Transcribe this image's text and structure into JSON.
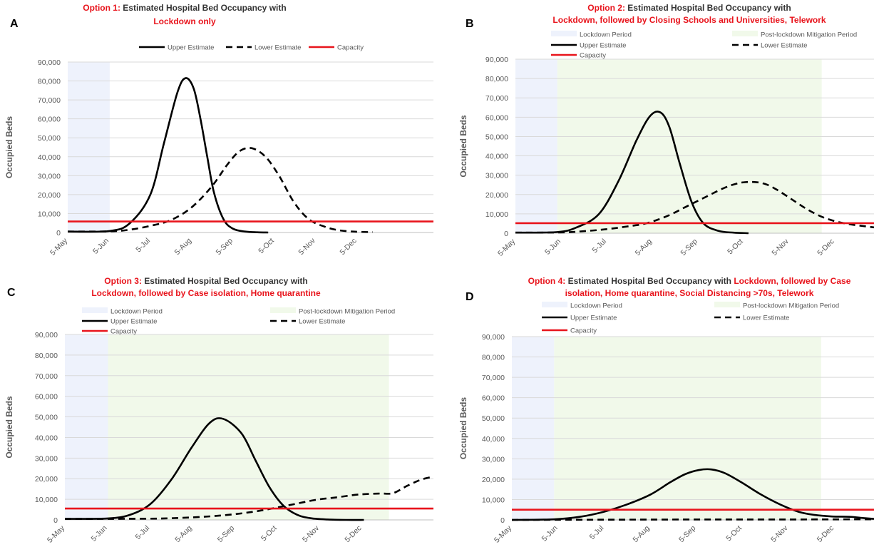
{
  "colors": {
    "upper": "#000000",
    "lower": "#000000",
    "capacity": "#e8141c",
    "lockdown_shade": "#eef2fc",
    "mitigation_shade": "#f1f9ea",
    "title_red": "#e8141c",
    "grid": "#d9d9d9",
    "axis_text": "#595959"
  },
  "panels": [
    {
      "label": "A",
      "title_lines": [
        [
          {
            "text": "Option 1:",
            "red": true
          },
          {
            "text": " Estimated Hospital Bed Occupancy with",
            "red": false
          }
        ],
        [
          {
            "text": "Lockdown only",
            "red": true
          }
        ]
      ],
      "legend": {
        "lockdown": null,
        "mitigation": null,
        "upper": "Upper Estimate",
        "lower": "Lower Estimate",
        "capacity": "Capacity"
      },
      "chart_data": {
        "type": "line",
        "ylabel": "Occupied Beds",
        "ylim": [
          0,
          90000
        ],
        "yticks": [
          "0",
          "10,000",
          "20,000",
          "30,000",
          "40,000",
          "50,000",
          "60,000",
          "70,000",
          "80,000",
          "90,000"
        ],
        "xticks": [
          "5-May",
          "5-Jun",
          "5-Jul",
          "5-Aug",
          "5-Sep",
          "5-Oct",
          "5-Nov",
          "5-Dec"
        ],
        "x_days_range": [
          0,
          270
        ],
        "grid": true,
        "lockdown_period": [
          0,
          31
        ],
        "mitigation_period": null,
        "capacity": 5800,
        "series": [
          {
            "name": "Upper Estimate",
            "style": "solid",
            "x": [
              0,
              31,
              46,
              61,
              71,
              81,
              87,
              93,
              98,
              103,
              108,
              115,
              122,
              131,
              140,
              148
            ],
            "y": [
              500,
              800,
              5000,
              20000,
              47000,
              74000,
              81500,
              76000,
              60000,
              40000,
              21000,
              7000,
              2000,
              500,
              100,
              0
            ]
          },
          {
            "name": "Lower Estimate",
            "style": "dashed",
            "x": [
              0,
              31,
              46,
              61,
              76,
              91,
              106,
              118,
              127,
              136,
              146,
              156,
              167,
              178,
              190,
              200,
              213,
              225
            ],
            "y": [
              500,
              600,
              1500,
              3500,
              6500,
              13000,
              24000,
              36000,
              43000,
              44500,
              40000,
              30000,
              16000,
              7000,
              3000,
              1200,
              400,
              200
            ]
          }
        ]
      }
    },
    {
      "label": "B",
      "title_lines": [
        [
          {
            "text": "Option 2:",
            "red": true
          },
          {
            "text": " Estimated Hospital Bed Occupancy with",
            "red": false
          }
        ],
        [
          {
            "text": "Lockdown, followed by Closing Schools and Universities, Telework",
            "red": true
          }
        ]
      ],
      "legend": {
        "lockdown": "Lockdown Period",
        "mitigation": "Post-lockdown Mitigation Period",
        "upper": "Upper Estimate",
        "lower": "Lower Estimate",
        "capacity": "Capacity"
      },
      "chart_data": {
        "type": "line",
        "ylabel": "Occupied Beds",
        "ylim": [
          0,
          90000
        ],
        "yticks": [
          "0",
          "10,000",
          "20,000",
          "30,000",
          "40,000",
          "50,000",
          "60,000",
          "70,000",
          "80,000",
          "90,000"
        ],
        "xticks": [
          "5-May",
          "5-Jun",
          "5-Jul",
          "5-Aug",
          "5-Sep",
          "5-Oct",
          "5-Nov",
          "5-Dec"
        ],
        "x_days_range": [
          0,
          240
        ],
        "grid": true,
        "lockdown_period": [
          0,
          28
        ],
        "mitigation_period": [
          28,
          205
        ],
        "capacity": 5200,
        "series": [
          {
            "name": "Upper Estimate",
            "style": "solid",
            "x": [
              0,
              28,
              41,
              56,
              69,
              81,
              90,
              97,
              103,
              110,
              118,
              126,
              136,
              146,
              156
            ],
            "y": [
              300,
              600,
              3000,
              10000,
              27000,
              48000,
              60500,
              62500,
              55000,
              36000,
              16000,
              5000,
              1200,
              300,
              0
            ]
          },
          {
            "name": "Lower Estimate",
            "style": "dashed",
            "x": [
              0,
              30,
              45,
              60,
              75,
              88,
              102,
              115,
              128,
              140,
              150,
              159,
              167,
              175,
              185,
              195,
              205,
              215,
              225,
              235,
              240
            ],
            "y": [
              300,
              400,
              1000,
              2000,
              3500,
              5200,
              9000,
              14000,
              19000,
              23500,
              26000,
              26500,
              25500,
              22500,
              17500,
              12500,
              8500,
              6000,
              4500,
              3500,
              3000
            ]
          }
        ]
      }
    },
    {
      "label": "C",
      "title_lines": [
        [
          {
            "text": "Option 3:",
            "red": true
          },
          {
            "text": " Estimated Hospital Bed Occupancy with",
            "red": false
          }
        ],
        [
          {
            "text": "Lockdown, followed by Case isolation, Home quarantine",
            "red": true
          }
        ]
      ],
      "legend": {
        "lockdown": "Lockdown Period",
        "mitigation": "Post-lockdown Mitigation Period",
        "upper": "Upper Estimate",
        "lower": "Lower Estimate",
        "capacity": "Capacity"
      },
      "chart_data": {
        "type": "line",
        "ylabel": "Occupied Beds",
        "ylim": [
          0,
          90000
        ],
        "yticks": [
          "0",
          "10,000",
          "20,000",
          "30,000",
          "40,000",
          "50,000",
          "60,000",
          "70,000",
          "80,000",
          "90,000"
        ],
        "xticks": [
          "5-May",
          "5-Jun",
          "5-Jul",
          "5-Aug",
          "5-Sep",
          "5-Oct",
          "5-Nov",
          "5-Dec"
        ],
        "x_days_range": [
          0,
          265
        ],
        "grid": true,
        "lockdown_period": [
          0,
          31
        ],
        "mitigation_period": [
          31,
          233
        ],
        "capacity": 5500,
        "series": [
          {
            "name": "Upper Estimate",
            "style": "solid",
            "x": [
              0,
              31,
              47,
              62,
              77,
              91,
              104,
              114,
              127,
              137,
              147,
              157,
              167,
              177,
              189,
              202,
              215
            ],
            "y": [
              500,
              700,
              2500,
              8000,
              20000,
              35000,
              47000,
              49000,
              42000,
              29000,
              16000,
              7000,
              2500,
              800,
              200,
              0,
              0
            ]
          },
          {
            "name": "Lower Estimate",
            "style": "dashed",
            "x": [
              0,
              31,
              61,
              76,
              91,
              106,
              121,
              136,
              151,
              166,
              181,
              196,
              211,
              226,
              236,
              246,
              256,
              265
            ],
            "y": [
              500,
              500,
              600,
              800,
              1200,
              1800,
              2700,
              4000,
              5800,
              7800,
              9800,
              11000,
              12300,
              12800,
              13000,
              16500,
              19500,
              21000
            ]
          }
        ]
      }
    },
    {
      "label": "D",
      "title_lines": [
        [
          {
            "text": "Option 4:",
            "red": true
          },
          {
            "text": " Estimated Hospital Bed Occupancy with ",
            "red": false
          },
          {
            "text": "Lockdown, followed by Case",
            "red": true
          }
        ],
        [
          {
            "text": "isolation, Home quarantine, Social Distancing >70s, Telework",
            "red": true
          }
        ]
      ],
      "legend": {
        "lockdown": "Lockdown Period",
        "mitigation": "Post-lockdown Mitigation Period",
        "upper": "Upper Estimate",
        "lower": "Lower Estimate",
        "capacity": "Capacity"
      },
      "chart_data": {
        "type": "line",
        "ylabel": "Occupied Beds",
        "ylim": [
          0,
          90000
        ],
        "yticks": [
          "0",
          "10,000",
          "20,000",
          "30,000",
          "40,000",
          "50,000",
          "60,000",
          "70,000",
          "80,000",
          "90,000"
        ],
        "xticks": [
          "5-May",
          "5-Jun",
          "5-Jul",
          "5-Aug",
          "5-Sep",
          "5-Oct",
          "5-Nov",
          "5-Dec"
        ],
        "x_days_range": [
          0,
          240
        ],
        "grid": true,
        "lockdown_period": [
          0,
          28
        ],
        "mitigation_period": [
          28,
          205
        ],
        "capacity": 5000,
        "series": [
          {
            "name": "Upper Estimate",
            "style": "solid",
            "x": [
              0,
              28,
              45,
              61,
              76,
              92,
              105,
              115,
              124,
              132,
              141,
              152,
              165,
              178,
              190,
              200,
              212,
              224,
              233,
              240
            ],
            "y": [
              0,
              300,
              1500,
              4000,
              7500,
              12500,
              18500,
              22500,
              24500,
              24800,
              23000,
              18500,
              12500,
              7500,
              4000,
              2500,
              1700,
              1500,
              900,
              500
            ]
          },
          {
            "name": "Lower Estimate",
            "style": "dashed",
            "x": [
              0,
              28,
              61,
              92,
              123,
              153,
              184,
              214,
              240
            ],
            "y": [
              0,
              50,
              100,
              150,
              200,
              200,
              200,
              250,
              300
            ]
          }
        ]
      }
    }
  ]
}
